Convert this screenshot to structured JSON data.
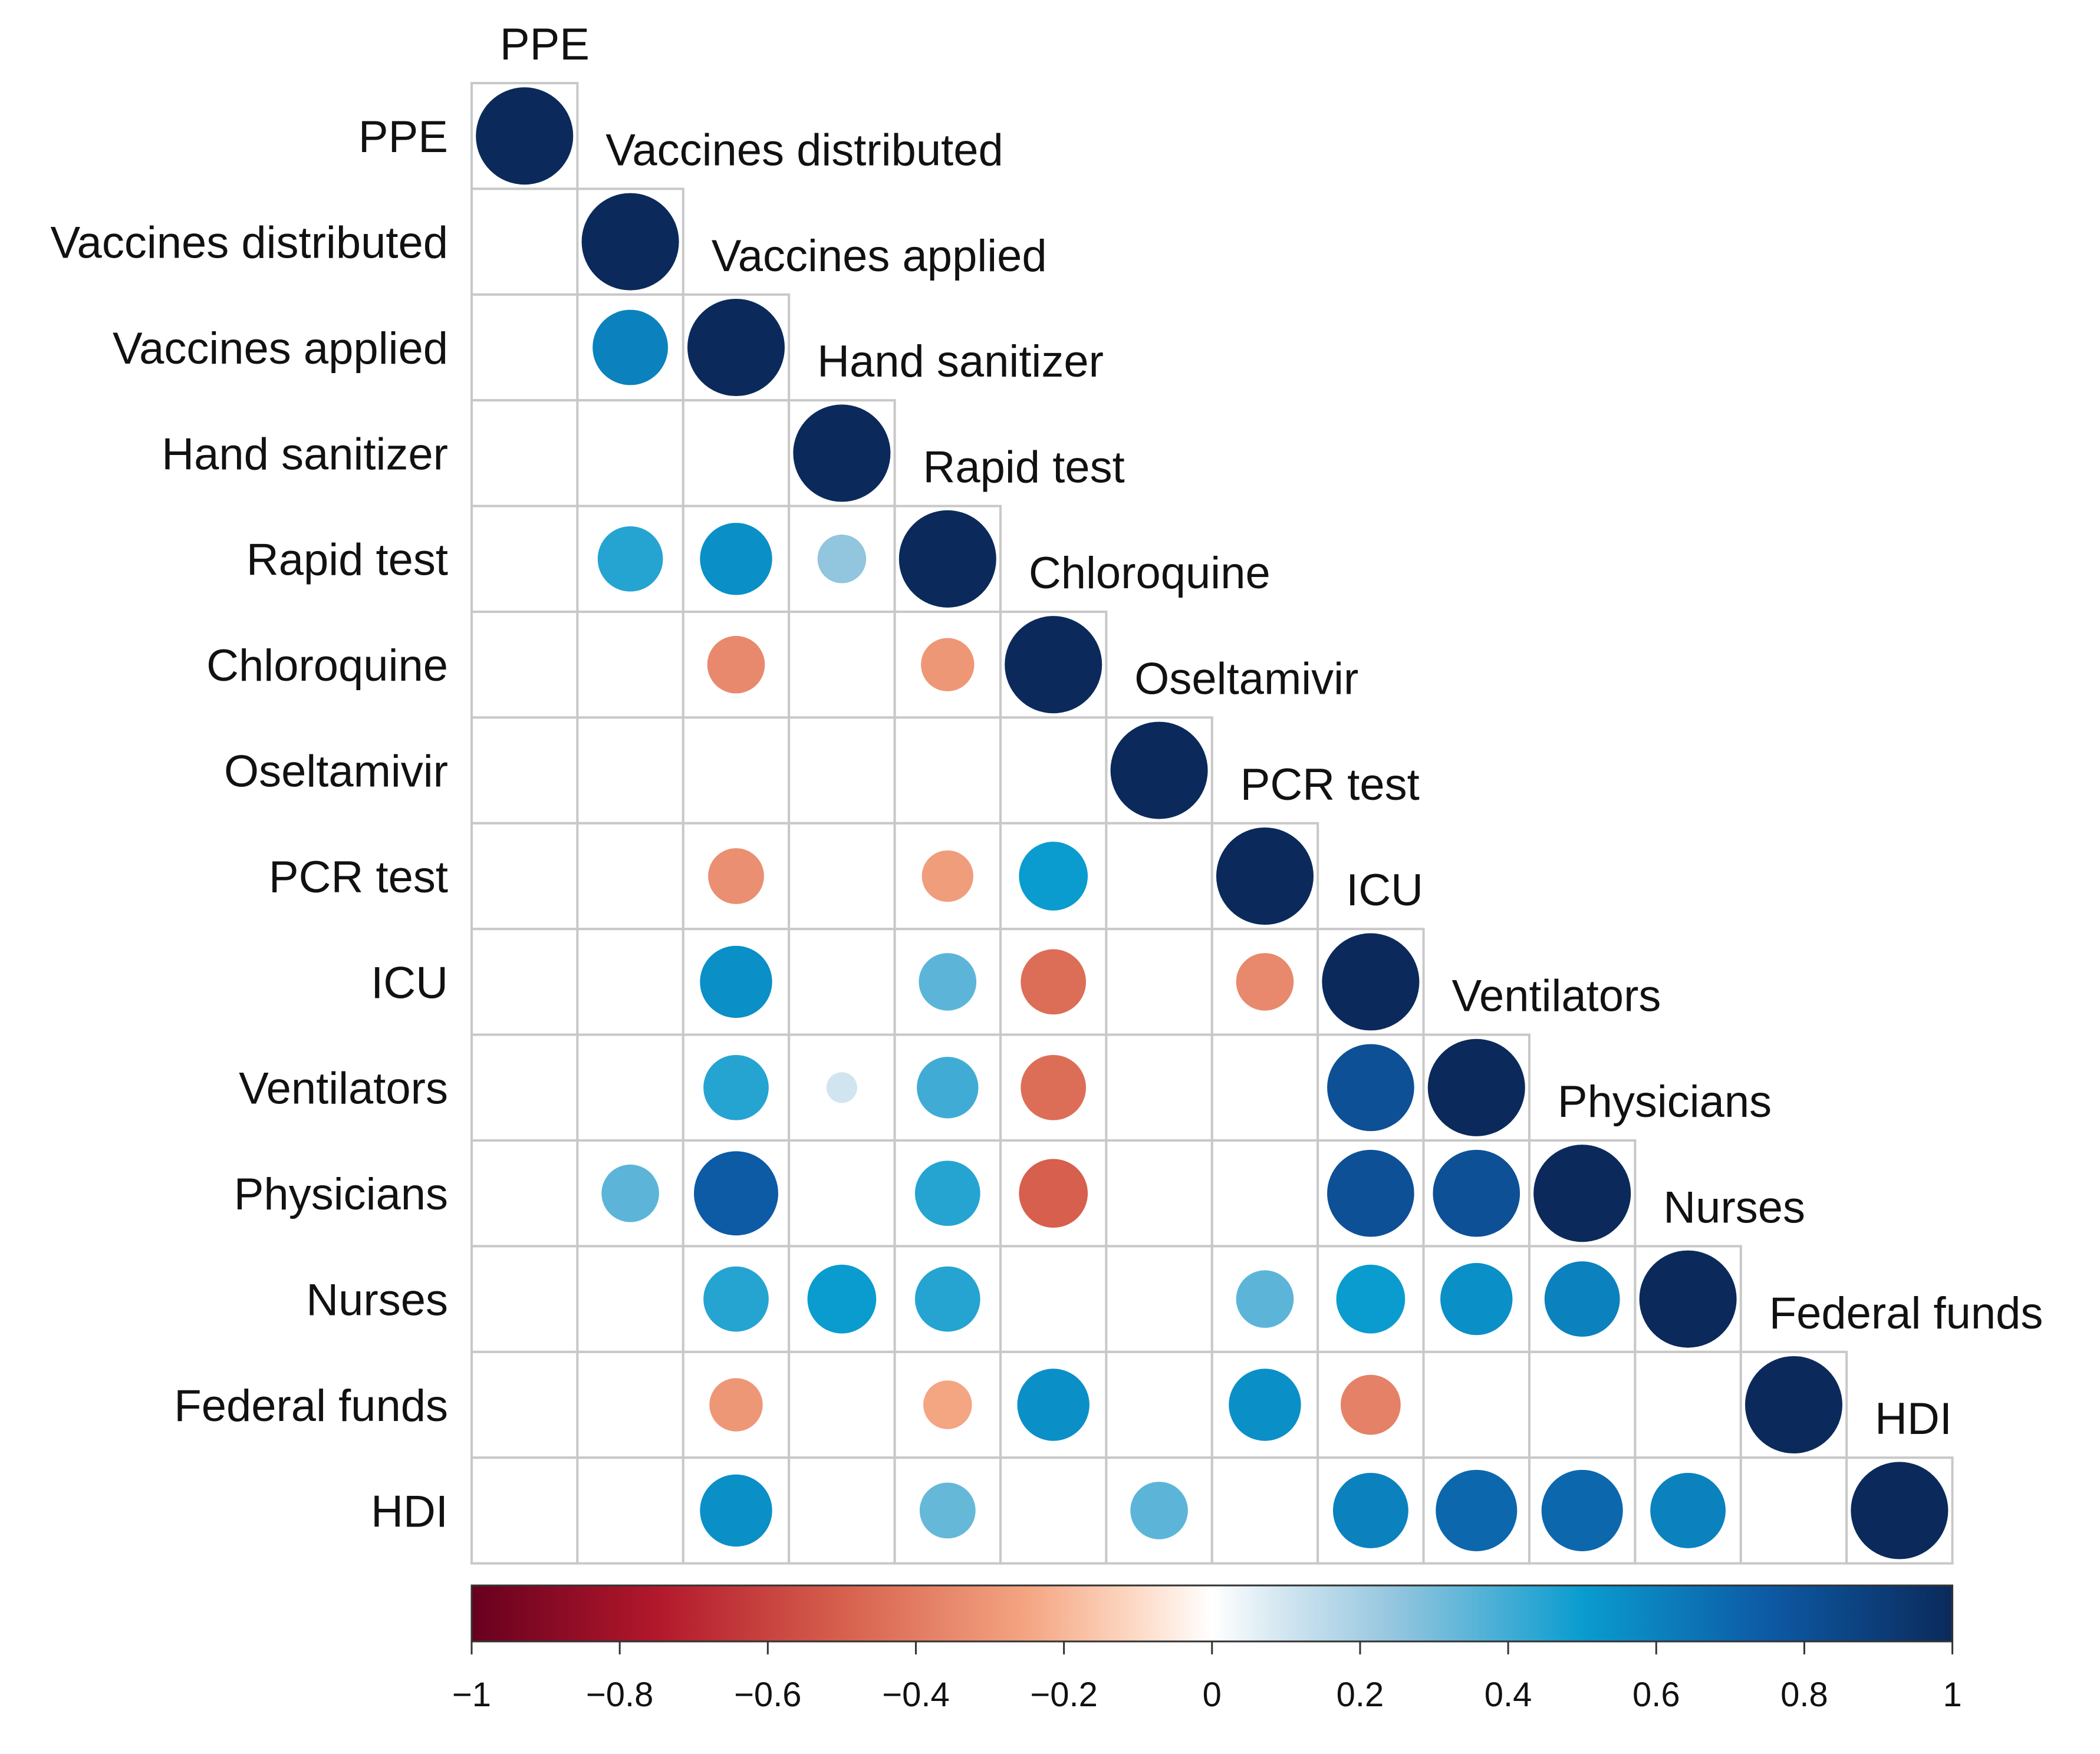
{
  "chart_data": {
    "type": "heatmap",
    "subtype": "correlation-matrix-lower-triangle-circles",
    "title": "",
    "variables": [
      "PPE",
      "Vaccines distributed",
      "Vaccines applied",
      "Hand sanitizer",
      "Rapid test",
      "Chloroquine",
      "Oseltamivir",
      "PCR test",
      "ICU",
      "Ventilators",
      "Physicians",
      "Nurses",
      "Federal funds",
      "HDI"
    ],
    "note": "Lower triangle including diagonal; null = blank (non-significant) cell. Row i lists correlations with variables 0..i.",
    "matrix": [
      [
        1
      ],
      [
        null,
        1
      ],
      [
        null,
        0.6,
        1
      ],
      [
        null,
        null,
        null,
        1
      ],
      [
        null,
        0.45,
        0.55,
        0.25,
        1
      ],
      [
        null,
        null,
        -0.35,
        null,
        -0.3,
        1
      ],
      [
        null,
        null,
        null,
        null,
        null,
        null,
        1
      ],
      [
        null,
        null,
        -0.33,
        null,
        -0.28,
        0.5,
        null,
        1
      ],
      [
        null,
        null,
        0.55,
        null,
        0.35,
        -0.45,
        null,
        -0.35,
        1
      ],
      [
        null,
        null,
        0.45,
        0.1,
        0.4,
        -0.45,
        null,
        null,
        0.8,
        1
      ],
      [
        null,
        0.35,
        0.75,
        null,
        0.45,
        -0.5,
        null,
        null,
        0.8,
        0.8,
        1
      ],
      [
        null,
        null,
        0.45,
        0.5,
        0.45,
        null,
        null,
        0.35,
        0.5,
        0.55,
        0.6,
        1
      ],
      [
        null,
        null,
        -0.3,
        null,
        -0.25,
        0.55,
        null,
        0.55,
        -0.38,
        null,
        null,
        null,
        1
      ],
      [
        null,
        null,
        0.55,
        null,
        0.33,
        null,
        0.35,
        null,
        0.6,
        0.7,
        0.7,
        0.6,
        null,
        1
      ]
    ],
    "color_scale": {
      "min": -1,
      "max": 1,
      "stops": [
        {
          "value": -1,
          "color": "#67001f"
        },
        {
          "value": -0.75,
          "color": "#b2182b"
        },
        {
          "value": -0.5,
          "color": "#d6604d"
        },
        {
          "value": -0.25,
          "color": "#f4a582"
        },
        {
          "value": -0.1,
          "color": "#fddbc7"
        },
        {
          "value": 0,
          "color": "#ffffff"
        },
        {
          "value": 0.1,
          "color": "#d1e5f0"
        },
        {
          "value": 0.25,
          "color": "#92c5de"
        },
        {
          "value": 0.5,
          "color": "#0a9ccf"
        },
        {
          "value": 0.75,
          "color": "#0d5aa5"
        },
        {
          "value": 1,
          "color": "#0b2a5b"
        }
      ]
    },
    "colorbar": {
      "ticks": [
        -1,
        -0.8,
        -0.6,
        -0.4,
        -0.2,
        0,
        0.2,
        0.4,
        0.6,
        0.8,
        1
      ],
      "tick_labels": [
        "−1",
        "−0.8",
        "−0.6",
        "−0.4",
        "−0.2",
        "0",
        "0.2",
        "0.4",
        "0.6",
        "0.8",
        "1"
      ],
      "placement": "bottom"
    }
  }
}
